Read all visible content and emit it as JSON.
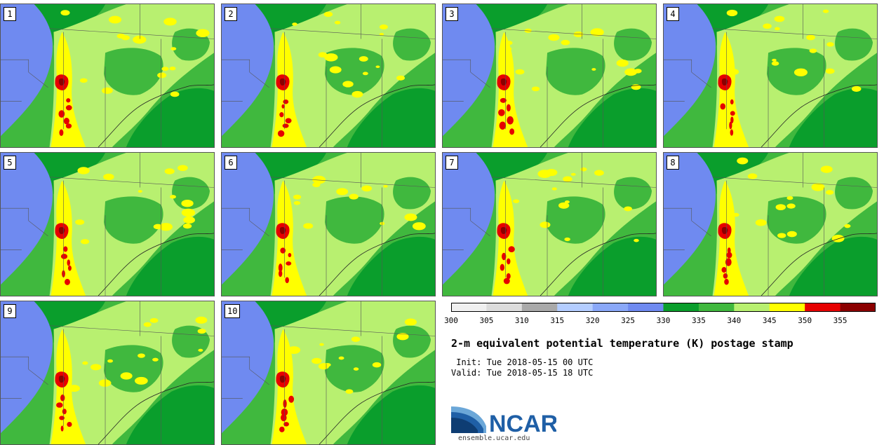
{
  "panels": [
    {
      "label": "1"
    },
    {
      "label": "2"
    },
    {
      "label": "3"
    },
    {
      "label": "4"
    },
    {
      "label": "5"
    },
    {
      "label": "6"
    },
    {
      "label": "7"
    },
    {
      "label": "8"
    },
    {
      "label": "9"
    },
    {
      "label": "10"
    }
  ],
  "colorbar": {
    "colors": [
      "#f0f0f0",
      "#dcdcdc",
      "#a9a9a9",
      "#b4cdff",
      "#8aa8f8",
      "#6f8af0",
      "#0a9e2c",
      "#40b83e",
      "#b8f070",
      "#ffff00",
      "#e60000",
      "#8b0000"
    ],
    "ticks": [
      "300",
      "305",
      "310",
      "315",
      "320",
      "325",
      "330",
      "335",
      "340",
      "345",
      "350",
      "355"
    ]
  },
  "title": "2-m equivalent potential temperature (K) postage stamp",
  "init": " Init: Tue 2018-05-15 00 UTC",
  "valid": "Valid: Tue 2018-05-15 18 UTC",
  "logo": {
    "text": "NCAR",
    "url": "ensemble.ucar.edu",
    "color": "#1f5fa6"
  }
}
